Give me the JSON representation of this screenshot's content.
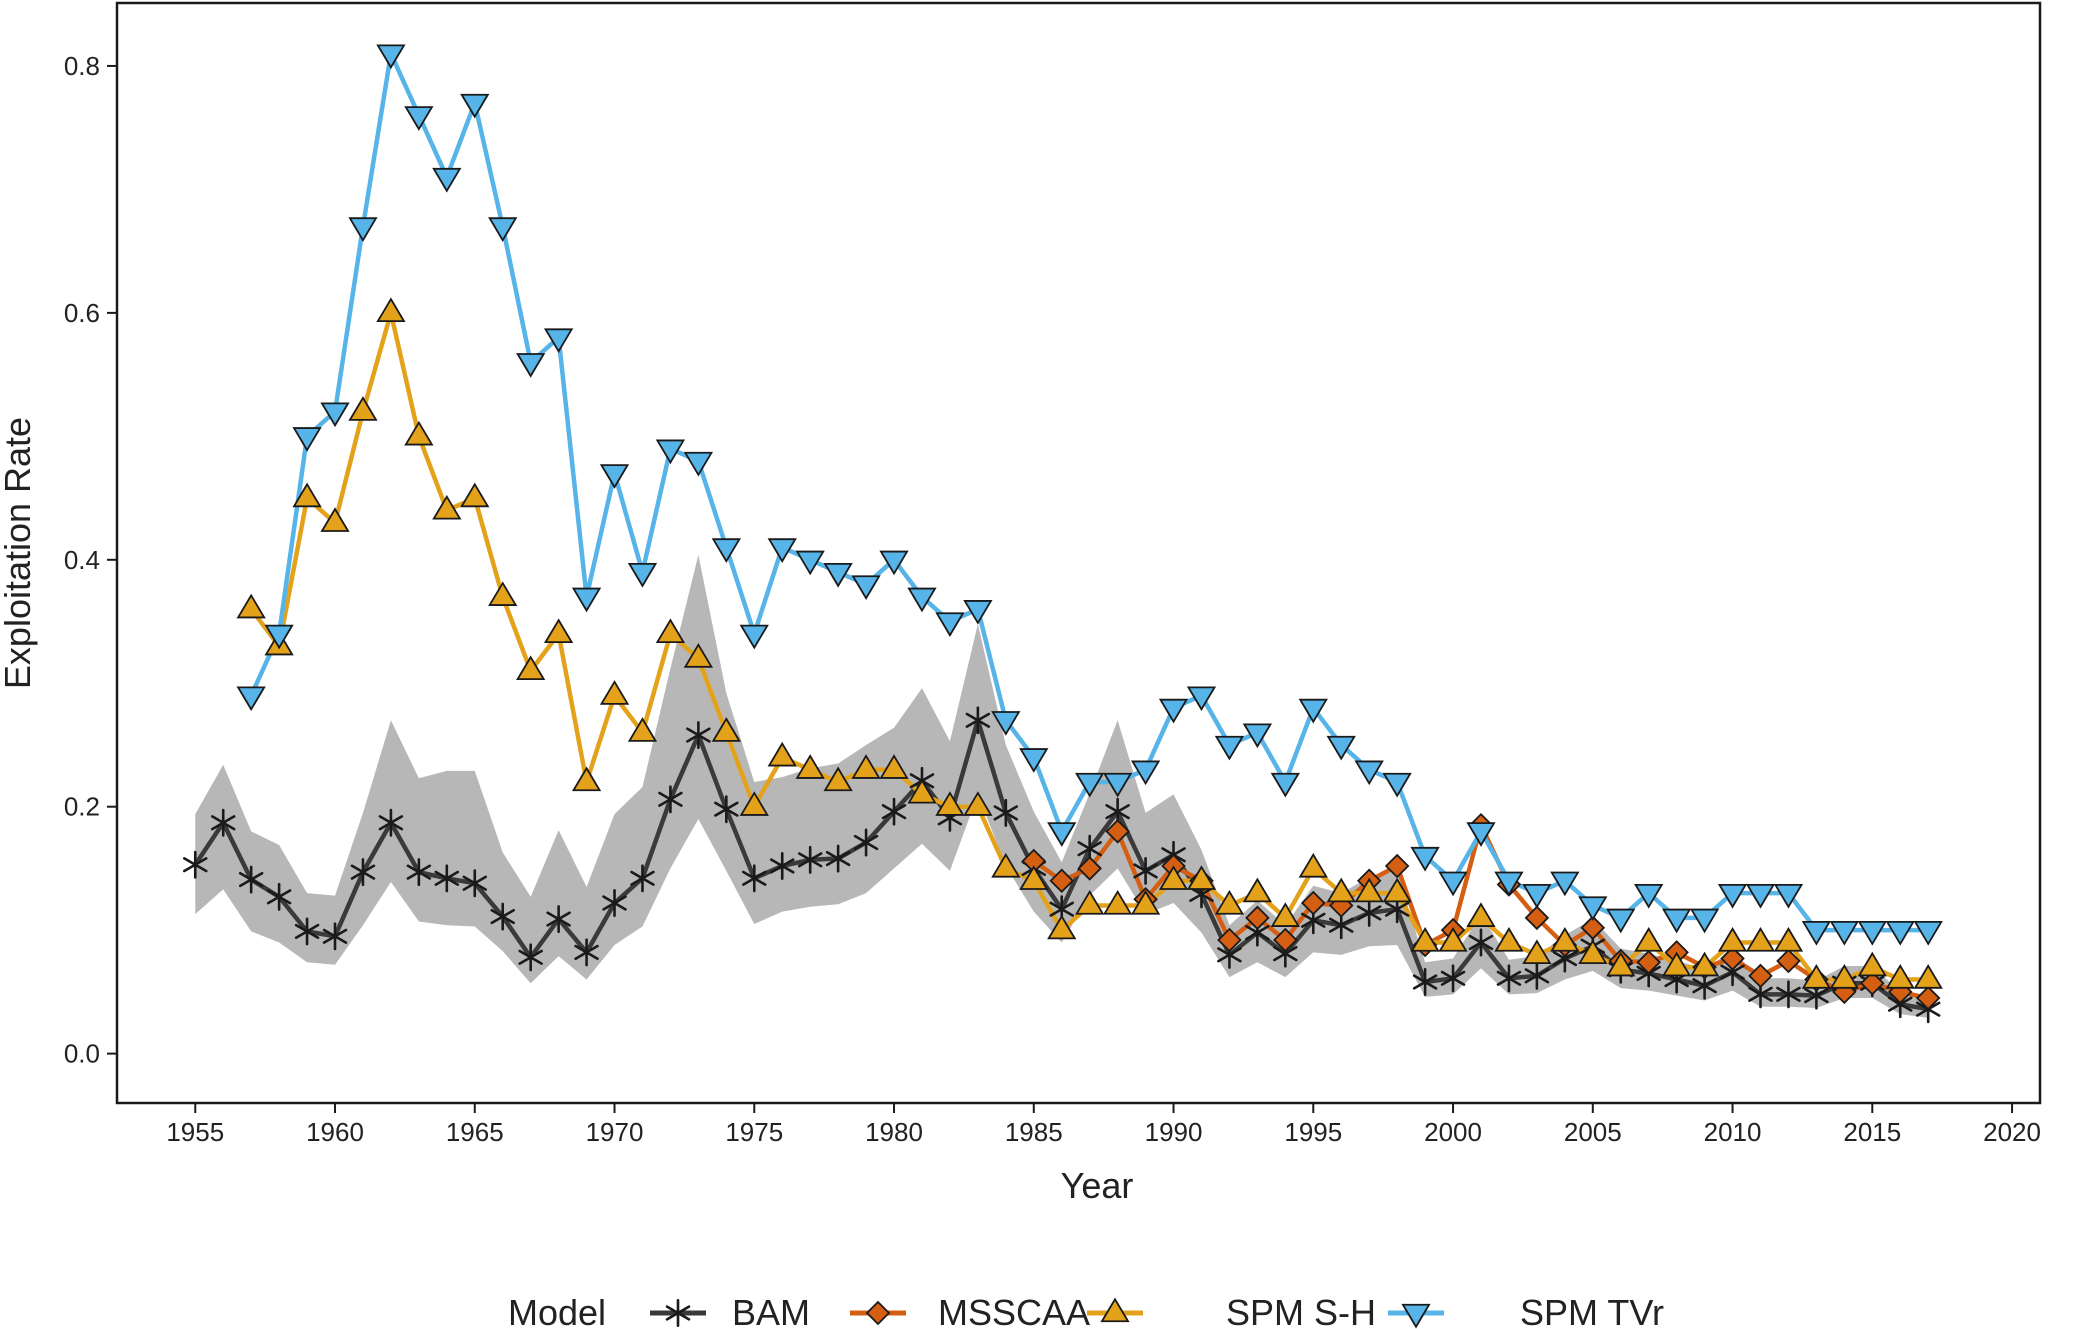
{
  "chart_data": {
    "type": "line",
    "title": "",
    "xlabel": "Year",
    "ylabel": "Exploitation Rate",
    "xlim": [
      1952.2,
      2021
    ],
    "ylim": [
      -0.04,
      0.851
    ],
    "xticks": [
      1955,
      1960,
      1965,
      1970,
      1975,
      1980,
      1985,
      1990,
      1995,
      2000,
      2005,
      2010,
      2015,
      2020
    ],
    "yticks": [
      0.0,
      0.2,
      0.4,
      0.6,
      0.8
    ],
    "xtick_labels": [
      "1955",
      "1960",
      "1965",
      "1970",
      "1975",
      "1980",
      "1985",
      "1990",
      "1995",
      "2000",
      "2005",
      "2010",
      "2015",
      "2020"
    ],
    "ytick_labels": [
      "0.0",
      "0.2",
      "0.4",
      "0.6",
      "0.8"
    ],
    "grid": false,
    "legend": {
      "title": "Model",
      "position": "bottom"
    },
    "series": [
      {
        "name": "BAM",
        "color": "#3a3a3a",
        "marker": "asterisk",
        "x": [
          1955,
          1956,
          1957,
          1958,
          1959,
          1960,
          1961,
          1962,
          1963,
          1964,
          1965,
          1966,
          1967,
          1968,
          1969,
          1970,
          1971,
          1972,
          1973,
          1974,
          1975,
          1976,
          1977,
          1978,
          1979,
          1980,
          1981,
          1982,
          1983,
          1984,
          1985,
          1986,
          1987,
          1988,
          1989,
          1990,
          1991,
          1992,
          1993,
          1994,
          1995,
          1996,
          1997,
          1998,
          1999,
          2000,
          2001,
          2002,
          2003,
          2004,
          2005,
          2006,
          2007,
          2008,
          2009,
          2010,
          2011,
          2012,
          2013,
          2014,
          2015,
          2016,
          2017
        ],
        "values": [
          0.153,
          0.187,
          0.141,
          0.127,
          0.099,
          0.095,
          0.147,
          0.187,
          0.147,
          0.142,
          0.138,
          0.111,
          0.078,
          0.109,
          0.082,
          0.122,
          0.142,
          0.206,
          0.258,
          0.198,
          0.142,
          0.152,
          0.157,
          0.158,
          0.171,
          0.196,
          0.221,
          0.191,
          0.27,
          0.195,
          0.15,
          0.117,
          0.166,
          0.196,
          0.148,
          0.161,
          0.129,
          0.08,
          0.098,
          0.081,
          0.108,
          0.104,
          0.114,
          0.117,
          0.058,
          0.061,
          0.09,
          0.061,
          0.063,
          0.077,
          0.087,
          0.068,
          0.065,
          0.06,
          0.055,
          0.066,
          0.048,
          0.048,
          0.047,
          0.057,
          0.057,
          0.04,
          0.036
        ],
        "ci_lower": [
          0.113,
          0.133,
          0.099,
          0.09,
          0.074,
          0.072,
          0.104,
          0.139,
          0.107,
          0.104,
          0.103,
          0.083,
          0.057,
          0.079,
          0.06,
          0.088,
          0.103,
          0.15,
          0.19,
          0.148,
          0.105,
          0.115,
          0.119,
          0.121,
          0.13,
          0.15,
          0.17,
          0.148,
          0.21,
          0.152,
          0.115,
          0.09,
          0.128,
          0.15,
          0.113,
          0.122,
          0.098,
          0.062,
          0.074,
          0.062,
          0.082,
          0.08,
          0.087,
          0.088,
          0.046,
          0.048,
          0.069,
          0.048,
          0.049,
          0.06,
          0.067,
          0.053,
          0.051,
          0.047,
          0.043,
          0.051,
          0.038,
          0.038,
          0.037,
          0.045,
          0.045,
          0.032,
          0.029
        ],
        "ci_upper": [
          0.194,
          0.234,
          0.18,
          0.169,
          0.13,
          0.128,
          0.195,
          0.27,
          0.223,
          0.229,
          0.229,
          0.163,
          0.127,
          0.181,
          0.135,
          0.194,
          0.216,
          0.312,
          0.404,
          0.292,
          0.22,
          0.224,
          0.231,
          0.235,
          0.25,
          0.264,
          0.296,
          0.253,
          0.348,
          0.25,
          0.196,
          0.155,
          0.211,
          0.27,
          0.195,
          0.21,
          0.165,
          0.104,
          0.124,
          0.104,
          0.136,
          0.13,
          0.143,
          0.148,
          0.074,
          0.077,
          0.113,
          0.076,
          0.079,
          0.096,
          0.109,
          0.085,
          0.081,
          0.075,
          0.069,
          0.083,
          0.061,
          0.061,
          0.059,
          0.071,
          0.071,
          0.05,
          0.045
        ]
      },
      {
        "name": "MSSCAA",
        "color": "#d45f13",
        "marker": "diamond",
        "x": [
          1985,
          1986,
          1987,
          1988,
          1989,
          1990,
          1991,
          1992,
          1993,
          1994,
          1995,
          1996,
          1997,
          1998,
          1999,
          2000,
          2001,
          2002,
          2003,
          2004,
          2005,
          2006,
          2007,
          2008,
          2009,
          2010,
          2011,
          2012,
          2013,
          2014,
          2015,
          2016,
          2017
        ],
        "values": [
          0.156,
          0.14,
          0.15,
          0.18,
          0.125,
          0.152,
          0.14,
          0.092,
          0.11,
          0.092,
          0.122,
          0.12,
          0.14,
          0.152,
          0.088,
          0.1,
          0.185,
          0.137,
          0.11,
          0.088,
          0.102,
          0.075,
          0.074,
          0.082,
          0.07,
          0.077,
          0.063,
          0.075,
          0.06,
          0.05,
          0.057,
          0.05,
          0.045
        ]
      },
      {
        "name": "SPM S-H",
        "color": "#e4a21b",
        "marker": "triangle-up",
        "x": [
          1957,
          1958,
          1959,
          1960,
          1961,
          1962,
          1963,
          1964,
          1965,
          1966,
          1967,
          1968,
          1969,
          1970,
          1971,
          1972,
          1973,
          1974,
          1975,
          1976,
          1977,
          1978,
          1979,
          1980,
          1981,
          1982,
          1983,
          1984,
          1985,
          1986,
          1987,
          1988,
          1989,
          1990,
          1991,
          1992,
          1993,
          1994,
          1995,
          1996,
          1997,
          1998,
          1999,
          2000,
          2001,
          2002,
          2003,
          2004,
          2005,
          2006,
          2007,
          2008,
          2009,
          2010,
          2011,
          2012,
          2013,
          2014,
          2015,
          2016,
          2017
        ],
        "values": [
          0.36,
          0.33,
          0.45,
          0.43,
          0.52,
          0.6,
          0.5,
          0.44,
          0.45,
          0.37,
          0.31,
          0.34,
          0.22,
          0.29,
          0.26,
          0.34,
          0.32,
          0.26,
          0.2,
          0.24,
          0.23,
          0.22,
          0.23,
          0.23,
          0.21,
          0.2,
          0.2,
          0.15,
          0.14,
          0.1,
          0.12,
          0.12,
          0.12,
          0.14,
          0.14,
          0.12,
          0.13,
          0.11,
          0.15,
          0.13,
          0.13,
          0.13,
          0.09,
          0.09,
          0.11,
          0.09,
          0.08,
          0.09,
          0.08,
          0.07,
          0.09,
          0.07,
          0.07,
          0.09,
          0.09,
          0.09,
          0.06,
          0.06,
          0.07,
          0.06,
          0.06
        ]
      },
      {
        "name": "SPM TVr",
        "color": "#56b4e9",
        "marker": "triangle-down",
        "x": [
          1957,
          1958,
          1959,
          1960,
          1961,
          1962,
          1963,
          1964,
          1965,
          1966,
          1967,
          1968,
          1969,
          1970,
          1971,
          1972,
          1973,
          1974,
          1975,
          1976,
          1977,
          1978,
          1979,
          1980,
          1981,
          1982,
          1983,
          1984,
          1985,
          1986,
          1987,
          1988,
          1989,
          1990,
          1991,
          1992,
          1993,
          1994,
          1995,
          1996,
          1997,
          1998,
          1999,
          2000,
          2001,
          2002,
          2003,
          2004,
          2005,
          2006,
          2007,
          2008,
          2009,
          2010,
          2011,
          2012,
          2013,
          2014,
          2015,
          2016,
          2017
        ],
        "values": [
          0.29,
          0.34,
          0.5,
          0.52,
          0.67,
          0.81,
          0.76,
          0.71,
          0.77,
          0.67,
          0.56,
          0.58,
          0.37,
          0.47,
          0.39,
          0.49,
          0.48,
          0.41,
          0.34,
          0.41,
          0.4,
          0.39,
          0.38,
          0.4,
          0.37,
          0.35,
          0.36,
          0.27,
          0.24,
          0.18,
          0.22,
          0.22,
          0.23,
          0.28,
          0.29,
          0.25,
          0.26,
          0.22,
          0.28,
          0.25,
          0.23,
          0.22,
          0.16,
          0.14,
          0.18,
          0.14,
          0.13,
          0.14,
          0.12,
          0.11,
          0.13,
          0.11,
          0.11,
          0.13,
          0.13,
          0.13,
          0.1,
          0.1,
          0.1,
          0.1,
          0.1
        ]
      }
    ]
  }
}
